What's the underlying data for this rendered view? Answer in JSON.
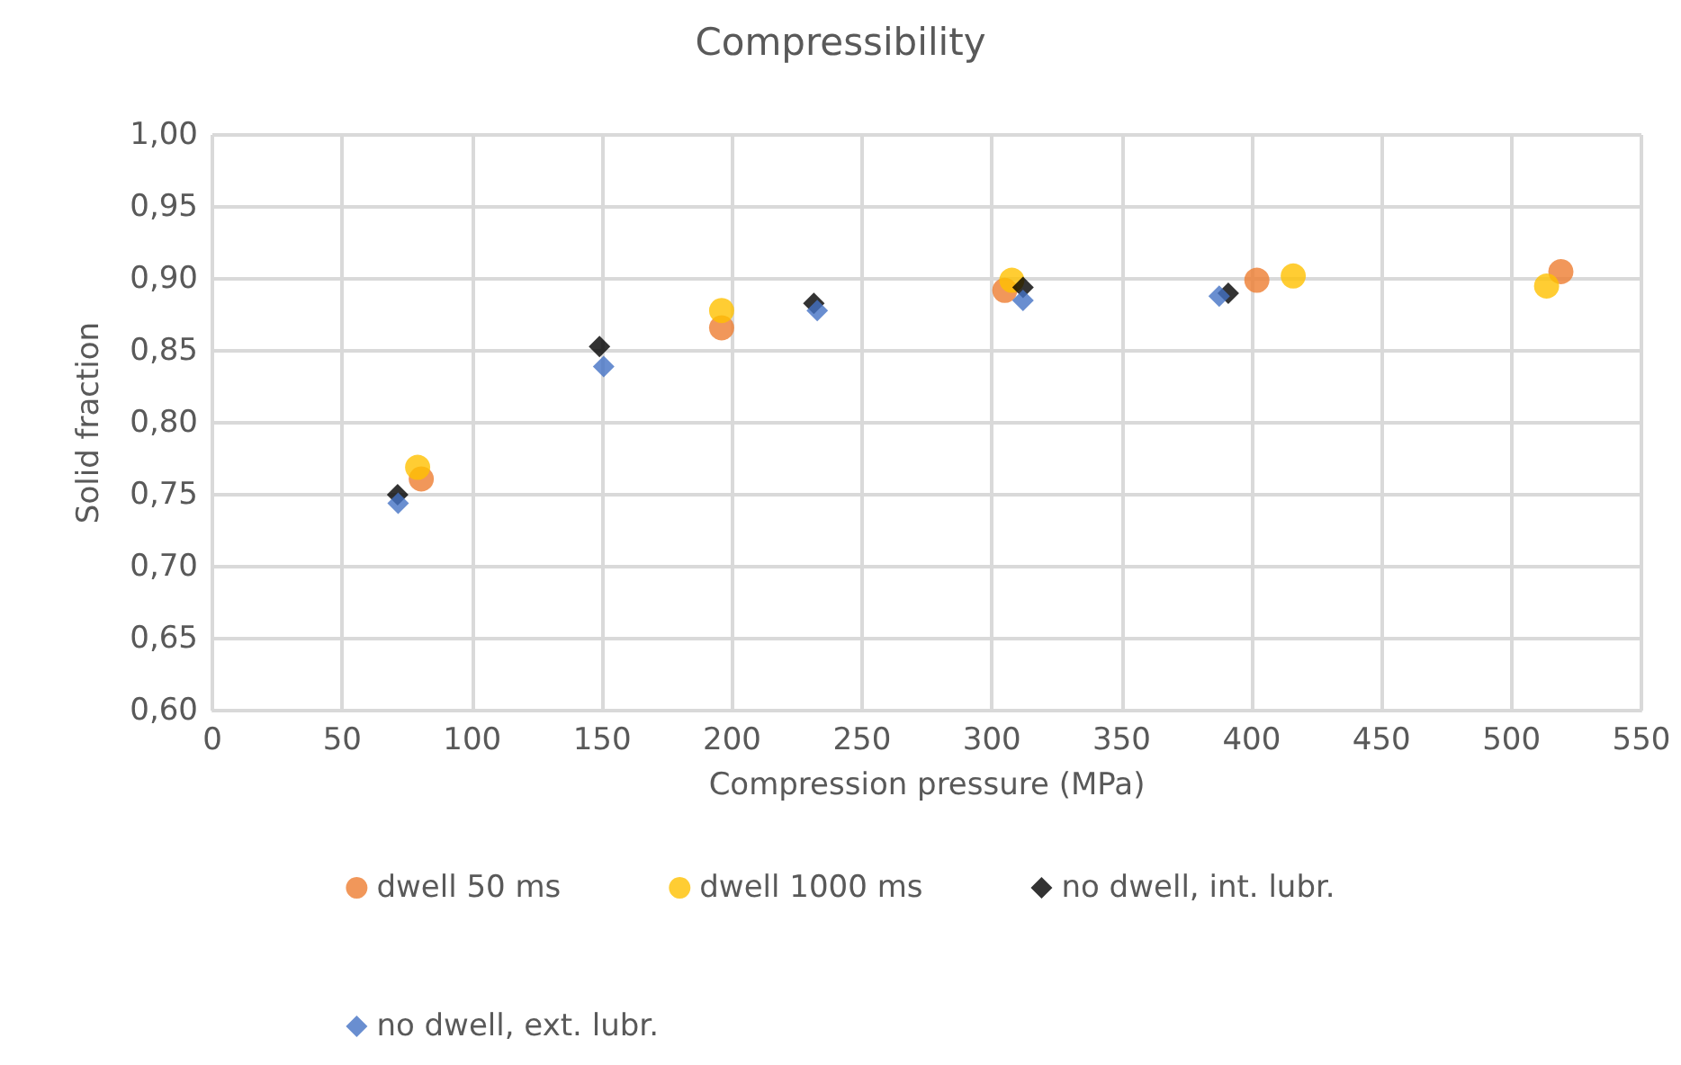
{
  "chart_data": {
    "type": "scatter",
    "title": "Compressibility",
    "xlabel": "Compression pressure (MPa)",
    "ylabel": "Solid fraction",
    "series": [
      {
        "name": "dwell 50 ms",
        "color": "#ed7d31",
        "marker": "circle",
        "x": [
          80.4,
          196,
          305,
          402,
          519
        ],
        "values": [
          0.761,
          0.866,
          0.892,
          0.899,
          0.905
        ]
      },
      {
        "name": "dwell 1000 ms",
        "color": "#ffc000",
        "marker": "circle",
        "x": [
          79,
          196,
          307.7,
          416,
          513.5
        ],
        "values": [
          0.769,
          0.878,
          0.899,
          0.902,
          0.895
        ]
      },
      {
        "name": "no dwell, int. lubr.",
        "color": "#000000",
        "marker": "diamond",
        "x": [
          71.3,
          149,
          231.5,
          312,
          391
        ],
        "values": [
          0.75,
          0.853,
          0.883,
          0.894,
          0.89
        ]
      },
      {
        "name": "no dwell, ext. lubr.",
        "color": "#4472c4",
        "marker": "diamond",
        "x": [
          71.5,
          150.6,
          232.8,
          312,
          387.5
        ],
        "values": [
          0.744,
          0.839,
          0.878,
          0.885,
          0.888
        ]
      }
    ],
    "xlim": [
      0,
      550
    ],
    "xticks": [
      0,
      50,
      100,
      150,
      200,
      250,
      300,
      350,
      400,
      450,
      500,
      550
    ],
    "ylim": [
      0.6,
      1.0
    ],
    "yticks": [
      {
        "value": 0.6,
        "label": "0,60"
      },
      {
        "value": 0.65,
        "label": "0,65"
      },
      {
        "value": 0.7,
        "label": "0,70"
      },
      {
        "value": 0.75,
        "label": "0,75"
      },
      {
        "value": 0.8,
        "label": "0,80"
      },
      {
        "value": 0.85,
        "label": "0,85"
      },
      {
        "value": 0.9,
        "label": "0,90"
      },
      {
        "value": 0.95,
        "label": "0,95"
      },
      {
        "value": 1.0,
        "label": "1,00"
      }
    ],
    "grid": true,
    "legend": "bottom"
  }
}
